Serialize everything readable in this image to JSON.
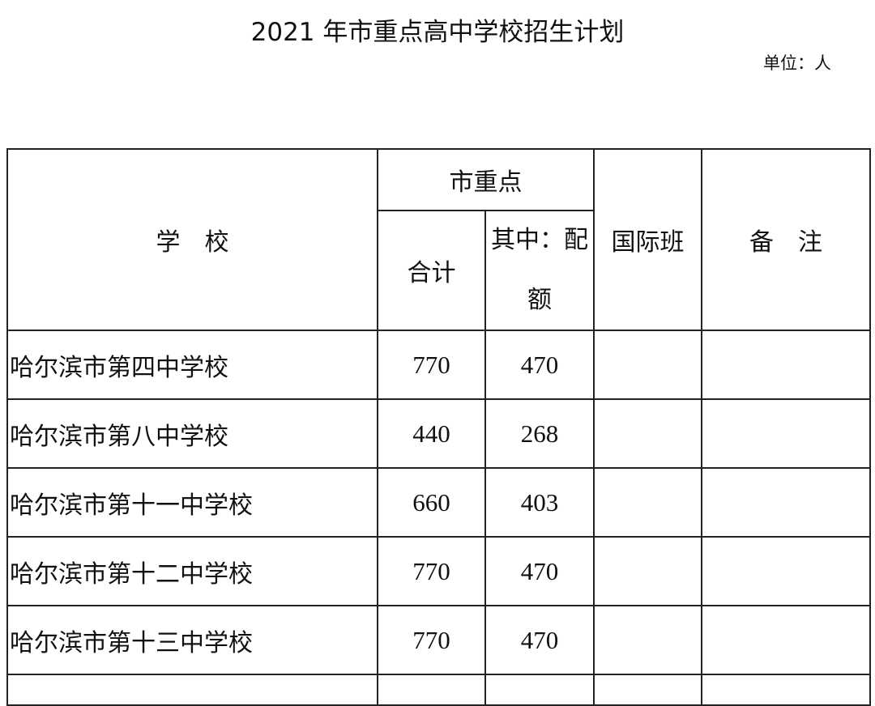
{
  "title": "2021 年市重点高中学校招生计划",
  "unit": "单位：人",
  "table": {
    "headers": {
      "school": "学　校",
      "group": "市重点",
      "total": "合计",
      "quota": "其中：配额",
      "international": "国际班",
      "remarks": "备　注"
    },
    "rows": [
      {
        "school": "哈尔滨市第四中学校",
        "total": "770",
        "quota": "470",
        "international": "",
        "remarks": ""
      },
      {
        "school": "哈尔滨市第八中学校",
        "total": "440",
        "quota": "268",
        "international": "",
        "remarks": ""
      },
      {
        "school": "哈尔滨市第十一中学校",
        "total": "660",
        "quota": "403",
        "international": "",
        "remarks": ""
      },
      {
        "school": "哈尔滨市第十二中学校",
        "total": "770",
        "quota": "470",
        "international": "",
        "remarks": ""
      },
      {
        "school": "哈尔滨市第十三中学校",
        "total": "770",
        "quota": "470",
        "international": "",
        "remarks": ""
      }
    ]
  }
}
